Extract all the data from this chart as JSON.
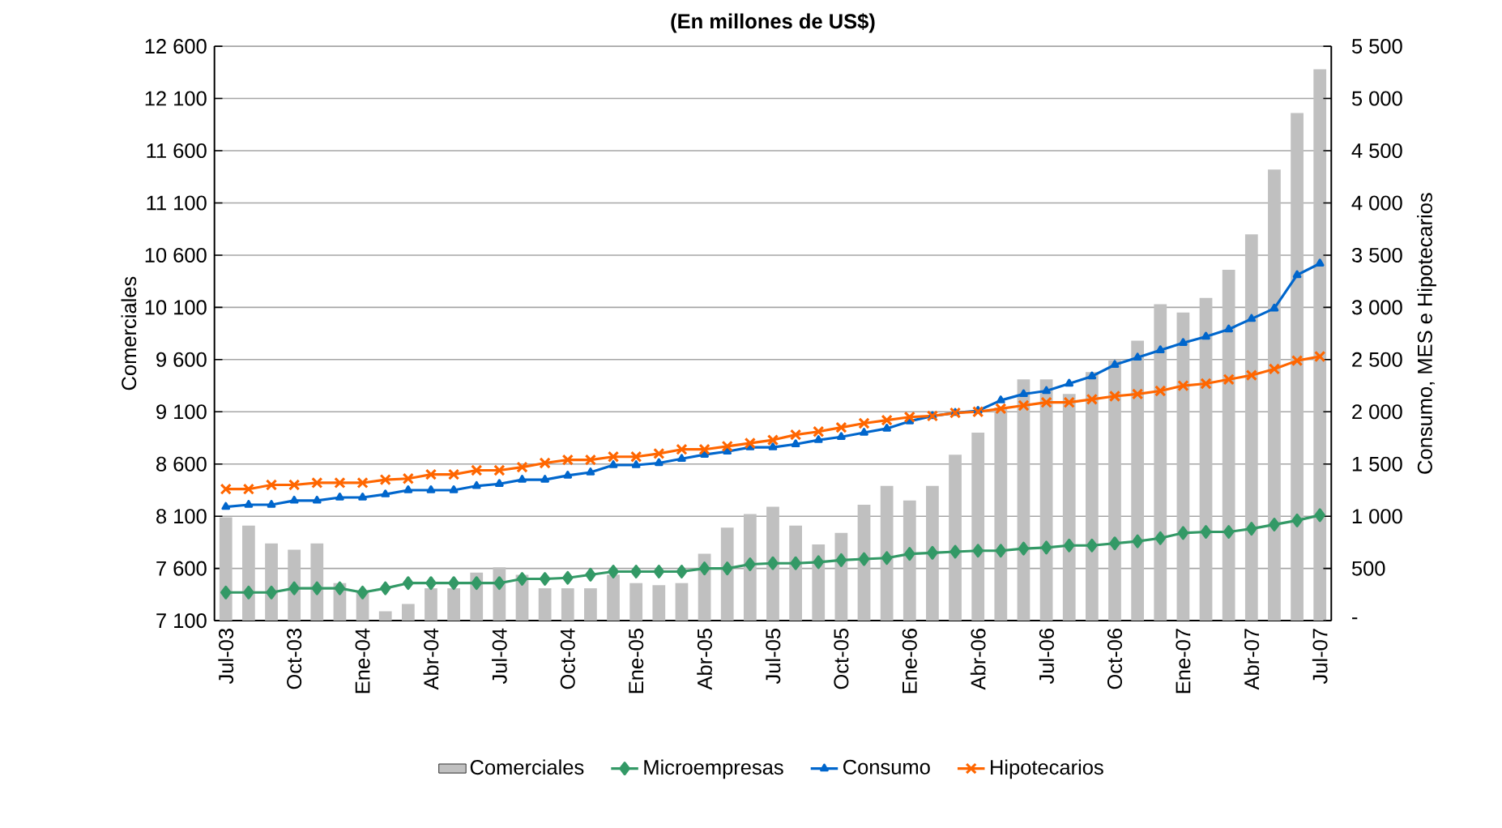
{
  "chart_data": {
    "type": "bar",
    "title": "(En millones de US$)",
    "ylabel": "Comerciales",
    "y2label": "Consumo, MES e Hipotecarios",
    "categories": [
      "Jul-03",
      null,
      null,
      "Oct-03",
      null,
      null,
      "Ene-04",
      null,
      null,
      "Abr-04",
      null,
      null,
      "Jul-04",
      null,
      null,
      "Oct-04",
      null,
      null,
      "Ene-05",
      null,
      null,
      "Abr-05",
      null,
      null,
      "Jul-05",
      null,
      null,
      "Oct-05",
      null,
      null,
      "Ene-06",
      null,
      null,
      "Abr-06",
      null,
      null,
      "Jul-06",
      null,
      null,
      "Oct-06",
      null,
      null,
      "Ene-07",
      null,
      null,
      "Abr-07",
      null,
      null,
      "Jul-07"
    ],
    "series": [
      {
        "name": "Comerciales",
        "color": "#c0c0c0",
        "values": [
          8090,
          8010,
          7840,
          7780,
          7840,
          7460,
          7390,
          7190,
          7260,
          7410,
          7410,
          7560,
          7610,
          7540,
          7410,
          7410,
          7410,
          7540,
          7460,
          7440,
          7460,
          7740,
          7990,
          8120,
          8190,
          8010,
          7830,
          7940,
          8210,
          8390,
          8250,
          8390,
          8690,
          8900,
          9140,
          9410,
          9410,
          9270,
          9480,
          9590,
          9780,
          10130,
          10050,
          10190,
          10460,
          10800,
          11420,
          11960,
          12380
        ]
      },
      {
        "name": "Microempresas",
        "type": "line",
        "axis": "y2",
        "marker": "diamond",
        "color": "#339966",
        "values": [
          270,
          270,
          270,
          310,
          310,
          310,
          270,
          310,
          360,
          360,
          360,
          360,
          360,
          400,
          400,
          410,
          440,
          470,
          470,
          470,
          470,
          500,
          500,
          540,
          550,
          550,
          560,
          580,
          590,
          600,
          640,
          650,
          660,
          670,
          670,
          690,
          700,
          720,
          720,
          740,
          760,
          790,
          840,
          850,
          850,
          880,
          920,
          960,
          1010
        ]
      },
      {
        "name": "Consumo",
        "type": "line",
        "axis": "y2",
        "marker": "triangle",
        "color": "#0066cc",
        "values": [
          1090,
          1110,
          1110,
          1150,
          1150,
          1180,
          1180,
          1210,
          1250,
          1250,
          1250,
          1290,
          1310,
          1350,
          1350,
          1390,
          1420,
          1490,
          1490,
          1510,
          1550,
          1590,
          1620,
          1660,
          1660,
          1690,
          1730,
          1760,
          1800,
          1840,
          1910,
          1960,
          1990,
          2010,
          2110,
          2170,
          2200,
          2270,
          2340,
          2450,
          2520,
          2590,
          2660,
          2720,
          2790,
          2890,
          2990,
          3310,
          3420
        ]
      },
      {
        "name": "Hipotecarios",
        "type": "line",
        "axis": "y2",
        "marker": "cross",
        "color": "#ff6600",
        "values": [
          1260,
          1260,
          1300,
          1300,
          1320,
          1320,
          1320,
          1350,
          1360,
          1400,
          1400,
          1440,
          1440,
          1470,
          1510,
          1540,
          1540,
          1570,
          1570,
          1600,
          1640,
          1640,
          1670,
          1700,
          1730,
          1780,
          1810,
          1850,
          1890,
          1920,
          1950,
          1960,
          1990,
          2000,
          2030,
          2060,
          2090,
          2090,
          2120,
          2150,
          2170,
          2200,
          2250,
          2270,
          2310,
          2350,
          2410,
          2490,
          2530
        ]
      }
    ],
    "ylim": [
      7100,
      12600
    ],
    "yticks": [
      {
        "value": 7100,
        "label": "7 100"
      },
      {
        "value": 7600,
        "label": "7 600"
      },
      {
        "value": 8100,
        "label": "8 100"
      },
      {
        "value": 8600,
        "label": "8 600"
      },
      {
        "value": 9100,
        "label": "9 100"
      },
      {
        "value": 9600,
        "label": "9 600"
      },
      {
        "value": 10100,
        "label": "10 100"
      },
      {
        "value": 10600,
        "label": "10 600"
      },
      {
        "value": 11100,
        "label": "11 100"
      },
      {
        "value": 11600,
        "label": "11 600"
      },
      {
        "value": 12100,
        "label": "12 100"
      },
      {
        "value": 12600,
        "label": "12 600"
      }
    ],
    "y2lim": [
      0,
      5500
    ],
    "y2ticks": [
      {
        "value": 0,
        "label": "-"
      },
      500,
      {
        "value": 1000,
        "label": "1 000"
      },
      {
        "value": 1500,
        "label": "1 500"
      },
      {
        "value": 2000,
        "label": "2 000"
      },
      {
        "value": 2500,
        "label": "2 500"
      },
      {
        "value": 3000,
        "label": "3 000"
      },
      {
        "value": 3500,
        "label": "3 500"
      },
      {
        "value": 4000,
        "label": "4 000"
      },
      {
        "value": 4500,
        "label": "4 500"
      },
      {
        "value": 5000,
        "label": "5 000"
      },
      {
        "value": 5500,
        "label": "5 500"
      }
    ],
    "grid": "y",
    "legend": "bottom"
  }
}
